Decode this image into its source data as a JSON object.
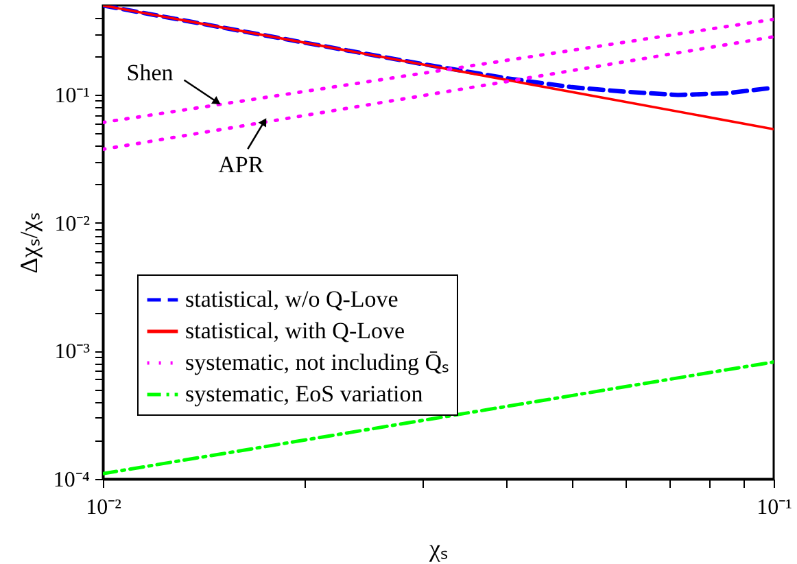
{
  "chart_data": {
    "type": "line",
    "xlabel": "χₛ",
    "ylabel": "Δχₛ/χₛ",
    "log": "xy",
    "grid": false,
    "legend": "left",
    "xlim": [
      0.01,
      0.1
    ],
    "ylim": [
      0.0001,
      0.5
    ],
    "xticks": [
      {
        "value": 0.01,
        "label": "10⁻²"
      },
      {
        "value": 0.02,
        "label": null
      },
      {
        "value": 0.03,
        "label": null
      },
      {
        "value": 0.04,
        "label": null
      },
      {
        "value": 0.05,
        "label": null
      },
      {
        "value": 0.06,
        "label": null
      },
      {
        "value": 0.07,
        "label": null
      },
      {
        "value": 0.08,
        "label": null
      },
      {
        "value": 0.09,
        "label": null
      },
      {
        "value": 0.1,
        "label": "10⁻¹"
      }
    ],
    "yticks": [
      {
        "value": 0.0001,
        "label": "10⁻⁴"
      },
      {
        "value": 0.0002,
        "label": null
      },
      {
        "value": 0.0003,
        "label": null
      },
      {
        "value": 0.0004,
        "label": null
      },
      {
        "value": 0.0005,
        "label": null
      },
      {
        "value": 0.0006,
        "label": null
      },
      {
        "value": 0.0007,
        "label": null
      },
      {
        "value": 0.0008,
        "label": null
      },
      {
        "value": 0.0009,
        "label": null
      },
      {
        "value": 0.001,
        "label": "10⁻³"
      },
      {
        "value": 0.002,
        "label": null
      },
      {
        "value": 0.003,
        "label": null
      },
      {
        "value": 0.004,
        "label": null
      },
      {
        "value": 0.005,
        "label": null
      },
      {
        "value": 0.006,
        "label": null
      },
      {
        "value": 0.007,
        "label": null
      },
      {
        "value": 0.008,
        "label": null
      },
      {
        "value": 0.009,
        "label": null
      },
      {
        "value": 0.01,
        "label": "10⁻²"
      },
      {
        "value": 0.02,
        "label": null
      },
      {
        "value": 0.03,
        "label": null
      },
      {
        "value": 0.04,
        "label": null
      },
      {
        "value": 0.05,
        "label": null
      },
      {
        "value": 0.06,
        "label": null
      },
      {
        "value": 0.07,
        "label": null
      },
      {
        "value": 0.08,
        "label": null
      },
      {
        "value": 0.09,
        "label": null
      },
      {
        "value": 0.1,
        "label": "10⁻¹"
      },
      {
        "value": 0.2,
        "label": null
      },
      {
        "value": 0.3,
        "label": null
      },
      {
        "value": 0.4,
        "label": null
      }
    ],
    "series": [
      {
        "name": "statistical, w/o Q-Love",
        "color": "#0000ff",
        "line_style": "dashed",
        "x": [
          0.01,
          0.02,
          0.03,
          0.04,
          0.05,
          0.06,
          0.072,
          0.085,
          0.1
        ],
        "values": [
          0.5,
          0.256,
          0.174,
          0.135,
          0.115,
          0.106,
          0.1,
          0.103,
          0.114
        ]
      },
      {
        "name": "statistical, with Q-Love",
        "color": "#ff0000",
        "line_style": "solid",
        "x": [
          0.01,
          0.1
        ],
        "values": [
          0.5,
          0.054
        ]
      },
      {
        "name": "systematic, not including Q̄ₛ",
        "color": "#ff00ff",
        "line_style": "dotted",
        "x": [
          0.01,
          0.1
        ],
        "values": [
          0.061,
          0.39
        ]
      },
      {
        "color": "#ff00ff",
        "line_style": "dotted",
        "x": [
          0.01,
          0.1
        ],
        "values": [
          0.0376,
          0.285
        ]
      },
      {
        "name": "systematic, EoS variation",
        "color": "#00ff00",
        "line_style": "dashdot",
        "x": [
          0.01,
          0.1
        ],
        "values": [
          0.00011,
          0.00082
        ]
      }
    ],
    "annotations": [
      {
        "text": "Shen",
        "x": 0.0148,
        "y": 0.088
      },
      {
        "text": "APR",
        "x": 0.0174,
        "y": 0.062
      }
    ]
  }
}
